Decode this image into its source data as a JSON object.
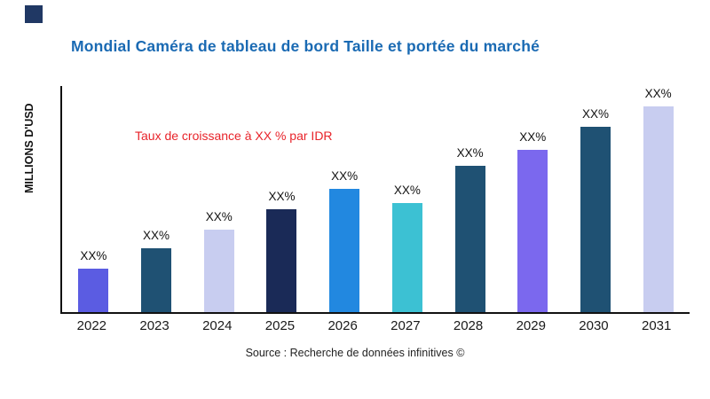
{
  "header": {
    "logo_color": "#203864"
  },
  "chart_data": {
    "type": "bar",
    "title": "Mondial Caméra de tableau de bord Taille et portée du marché",
    "title_color": "#1a6ab3",
    "ylabel": "MILLIONS D'USD",
    "xlabel": "",
    "annotation": "Taux de croissance à XX % par IDR",
    "annotation_color": "#e8232a",
    "categories": [
      "2022",
      "2023",
      "2024",
      "2025",
      "2026",
      "2027",
      "2028",
      "2029",
      "2030",
      "2031"
    ],
    "values": [
      21,
      31,
      40,
      50,
      60,
      53,
      71,
      79,
      90,
      100
    ],
    "value_labels": [
      "XX%",
      "XX%",
      "XX%",
      "XX%",
      "XX%",
      "XX%",
      "XX%",
      "XX%",
      "XX%",
      "XX%"
    ],
    "bar_colors": [
      "#5b5ce2",
      "#1f5173",
      "#c8cdf0",
      "#1a2a57",
      "#2288e0",
      "#3cc1d3",
      "#1f5173",
      "#7b68ee",
      "#1f5173",
      "#c8cdf0"
    ],
    "ylim_note": "values are relative heights in % of tallest bar (no numeric axis shown)",
    "grid": false,
    "legend": false
  },
  "footer": {
    "source": "Source : Recherche de données infinitives ©"
  }
}
